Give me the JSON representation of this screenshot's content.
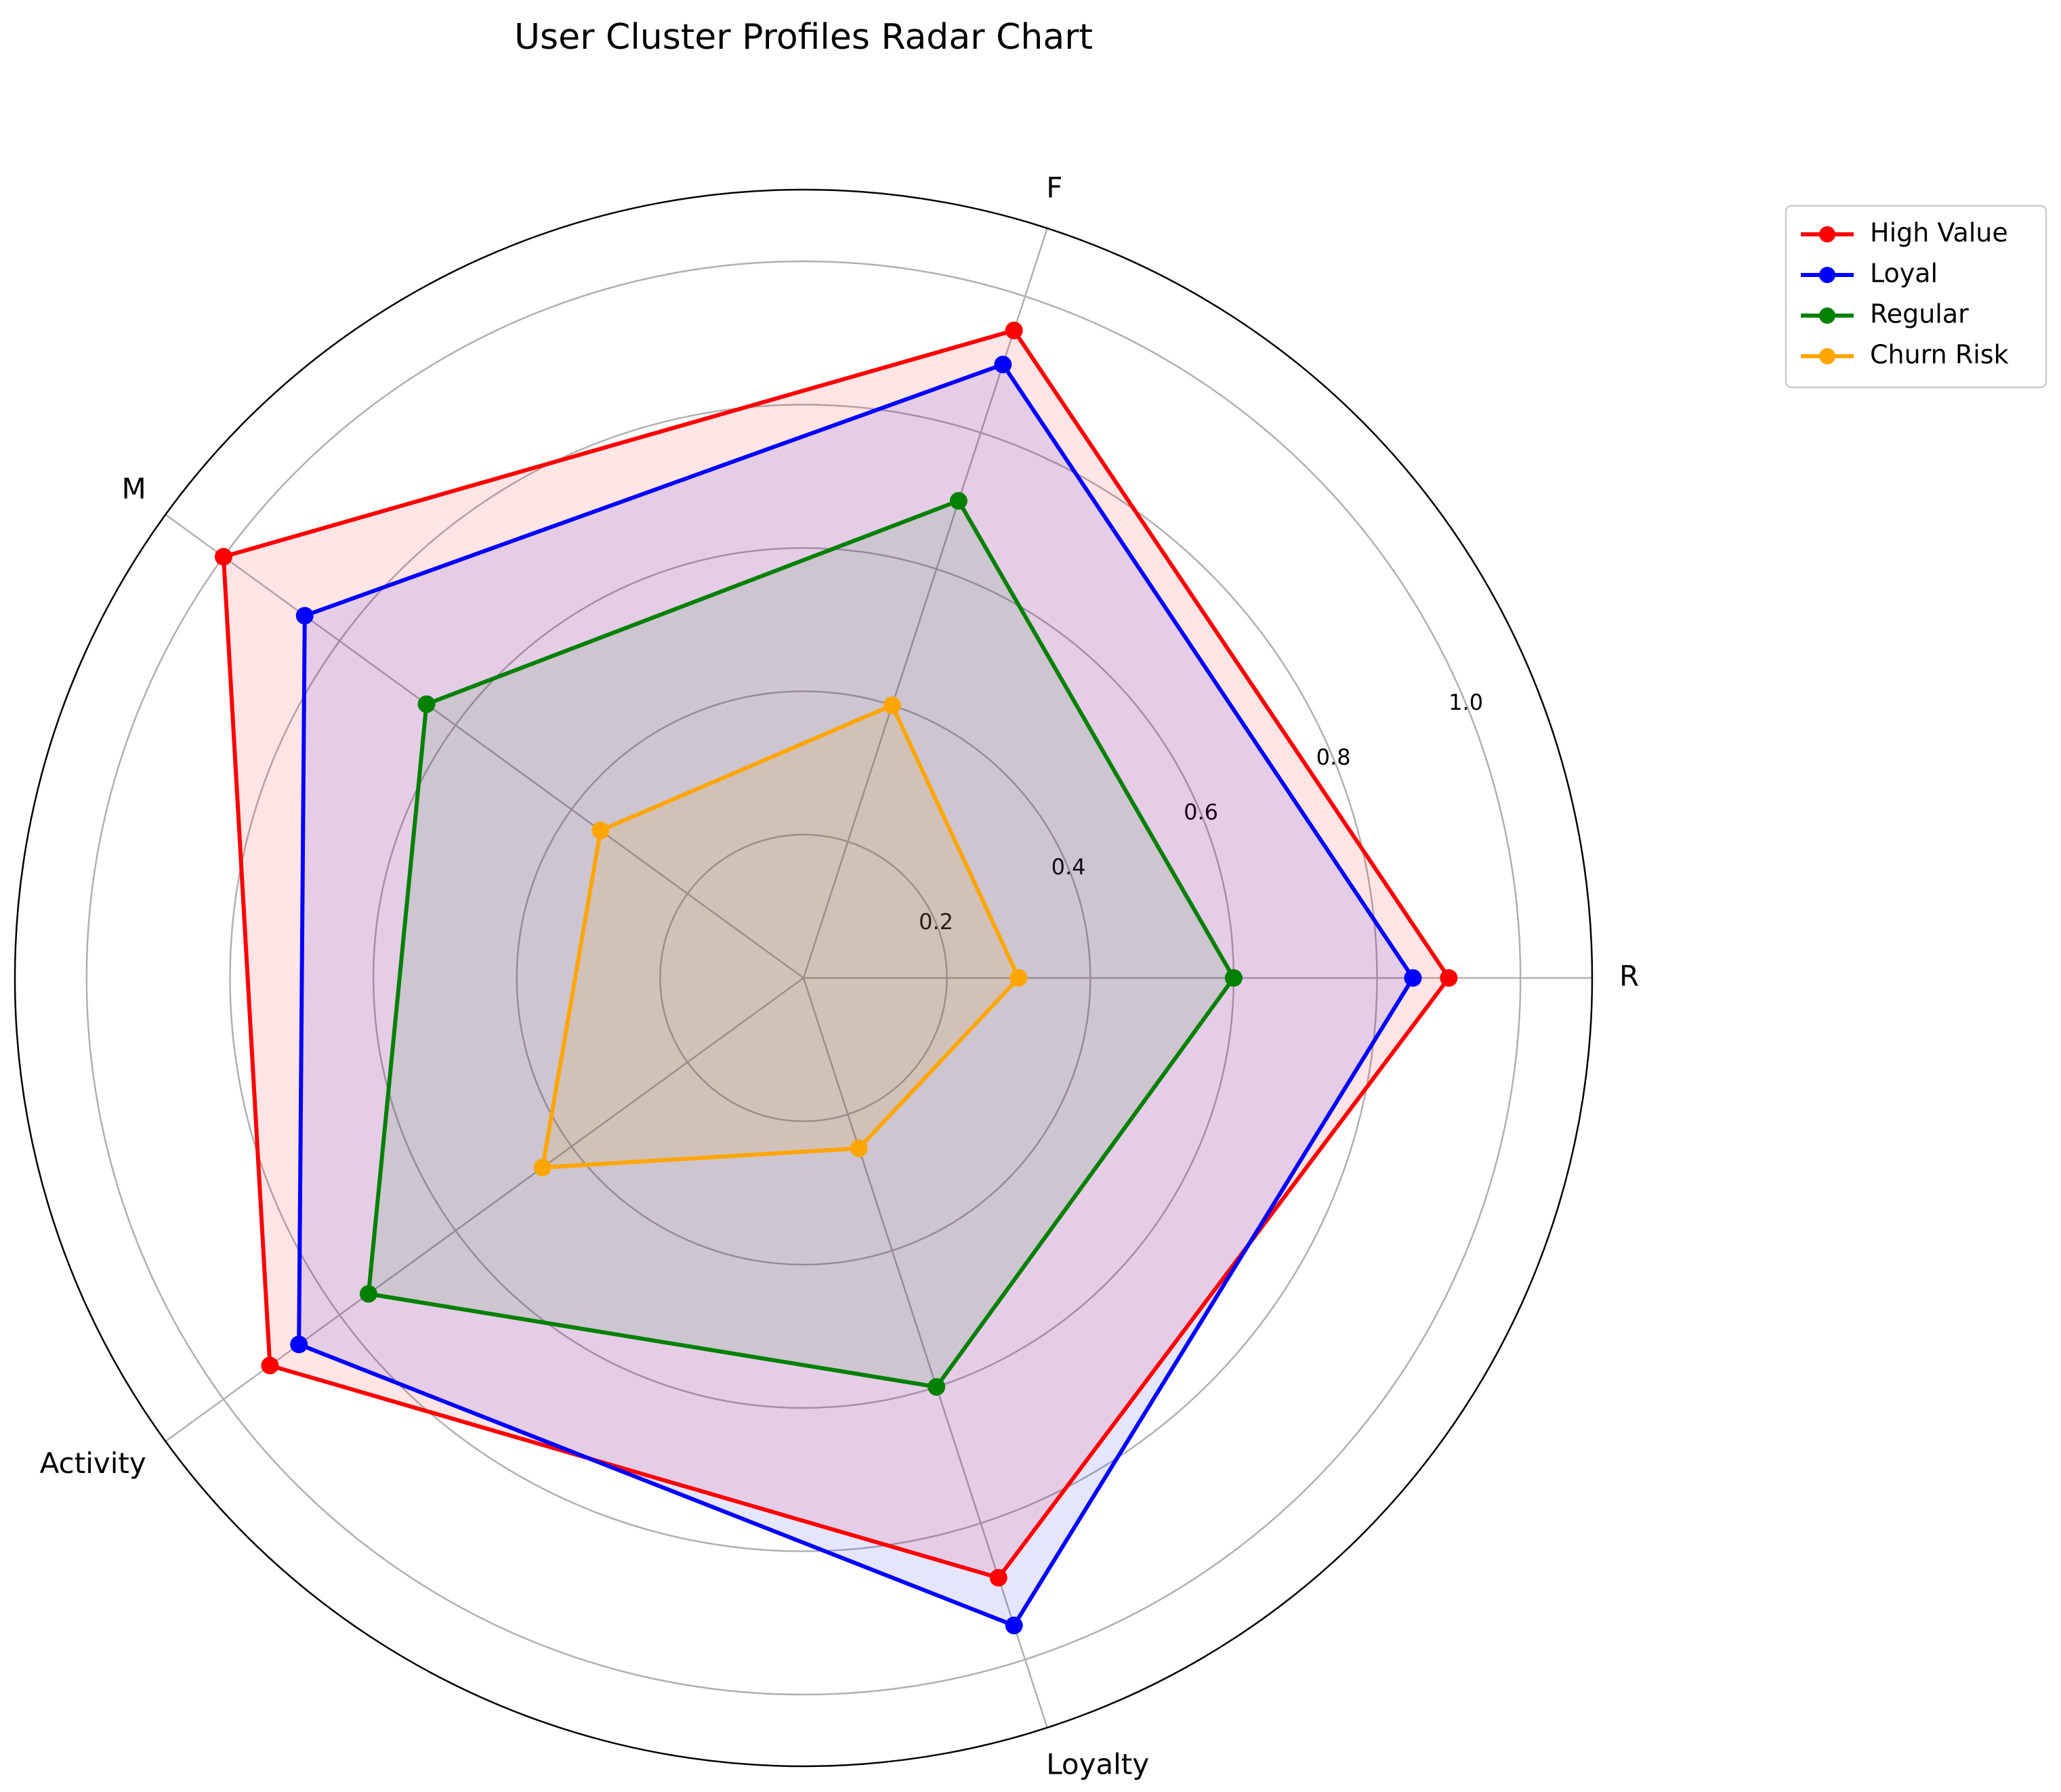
{
  "chart_data": {
    "type": "radar",
    "title": "User Cluster Profiles Radar Chart",
    "axes": [
      "R",
      "F",
      "M",
      "Activity",
      "Loyalty"
    ],
    "rlim": [
      0,
      1.1
    ],
    "rticks": [
      0.2,
      0.4,
      0.6,
      0.8,
      1.0
    ],
    "rtick_labels": [
      "0.2",
      "0.4",
      "0.6",
      "0.8",
      "1.0"
    ],
    "grid": true,
    "legend_position": "upper-right-outside",
    "series": [
      {
        "name": "High Value",
        "color": "#ff0000",
        "values": [
          0.9,
          0.95,
          1.0,
          0.92,
          0.88
        ]
      },
      {
        "name": "Loyal",
        "color": "#0000ff",
        "values": [
          0.85,
          0.9,
          0.86,
          0.87,
          0.95
        ]
      },
      {
        "name": "Regular",
        "color": "#008000",
        "values": [
          0.6,
          0.7,
          0.65,
          0.75,
          0.6
        ]
      },
      {
        "name": "Churn Risk",
        "color": "#ffa500",
        "values": [
          0.3,
          0.4,
          0.35,
          0.45,
          0.25
        ]
      }
    ]
  }
}
